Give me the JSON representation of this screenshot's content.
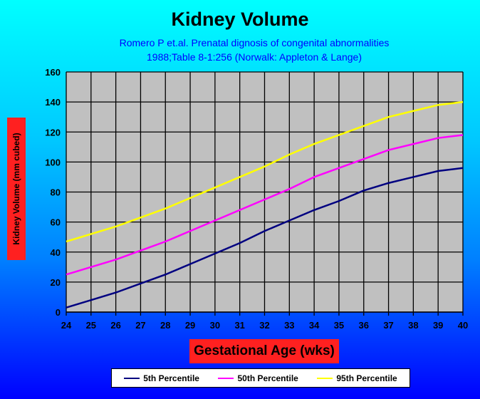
{
  "chart_data": {
    "type": "line",
    "title": "Kidney Volume",
    "subtitle": [
      "Romero P et.al. Prenatal dignosis of congenital abnormalities",
      "1988;Table 8-1:256 (Norwalk: Appleton & Lange)"
    ],
    "xlabel": "Gestational Age (wks)",
    "ylabel": "Kidney Volume (mm cubed)",
    "x": [
      24,
      25,
      26,
      27,
      28,
      29,
      30,
      31,
      32,
      33,
      34,
      35,
      36,
      37,
      38,
      39,
      40
    ],
    "ylim": [
      0,
      160
    ],
    "yticks": [
      0,
      20,
      40,
      60,
      80,
      100,
      120,
      140,
      160
    ],
    "grid": true,
    "legend_placement": "bottom",
    "series": [
      {
        "name": "5th Percentile",
        "color": "#000080",
        "values": [
          3,
          8,
          13,
          19,
          25,
          32,
          39,
          46,
          54,
          61,
          68,
          74,
          81,
          86,
          90,
          94,
          96
        ]
      },
      {
        "name": "50th Percentile",
        "color": "#ff00ff",
        "values": [
          25,
          30,
          35,
          41,
          47,
          54,
          61,
          68,
          75,
          82,
          90,
          96,
          102,
          108,
          112,
          116,
          118
        ]
      },
      {
        "name": "95th Percentile",
        "color": "#ffff00",
        "values": [
          47,
          52,
          57,
          63,
          69,
          76,
          83,
          90,
          97,
          105,
          112,
          118,
          124,
          130,
          134,
          138,
          140
        ]
      }
    ]
  }
}
